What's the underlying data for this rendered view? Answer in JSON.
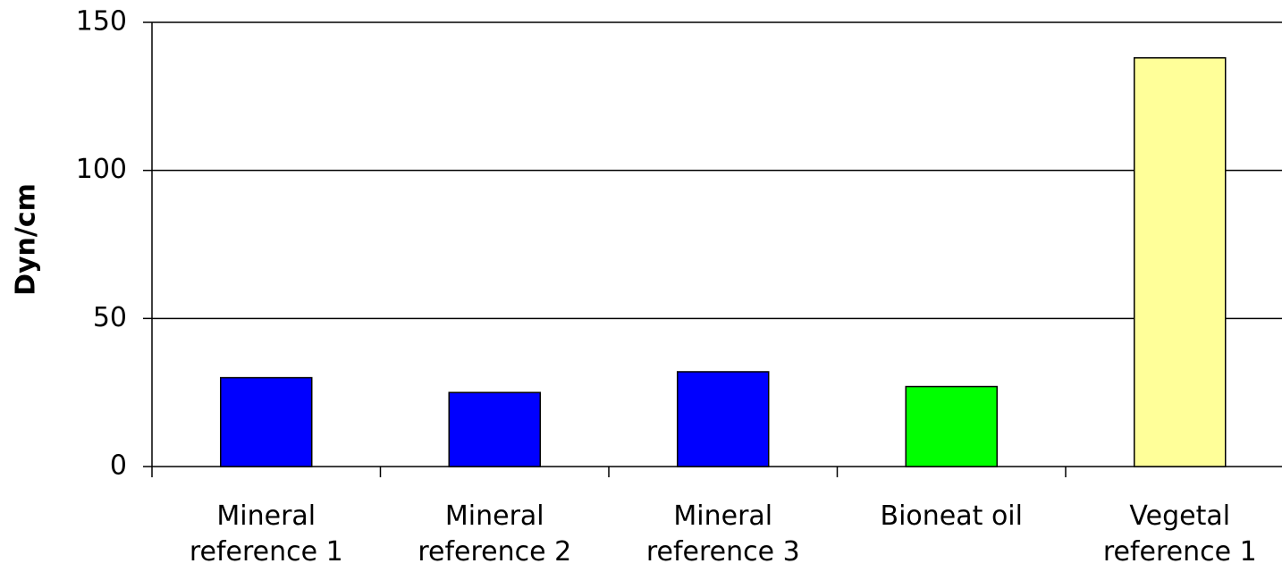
{
  "chart_data": {
    "type": "bar",
    "y_label": "Dyn/cm",
    "categories": [
      "Mineral reference 1",
      "Mineral reference 2",
      "Mineral reference 3",
      "Bioneat oil",
      "Vegetal reference 1"
    ],
    "values": [
      30,
      25,
      32,
      27,
      138
    ],
    "colors": [
      "#0000ff",
      "#0000ff",
      "#0000ff",
      "#00ff00",
      "#ffff99"
    ],
    "ylim": [
      0,
      150
    ],
    "yticks": [
      0,
      50,
      100,
      150
    ],
    "grid": true
  }
}
